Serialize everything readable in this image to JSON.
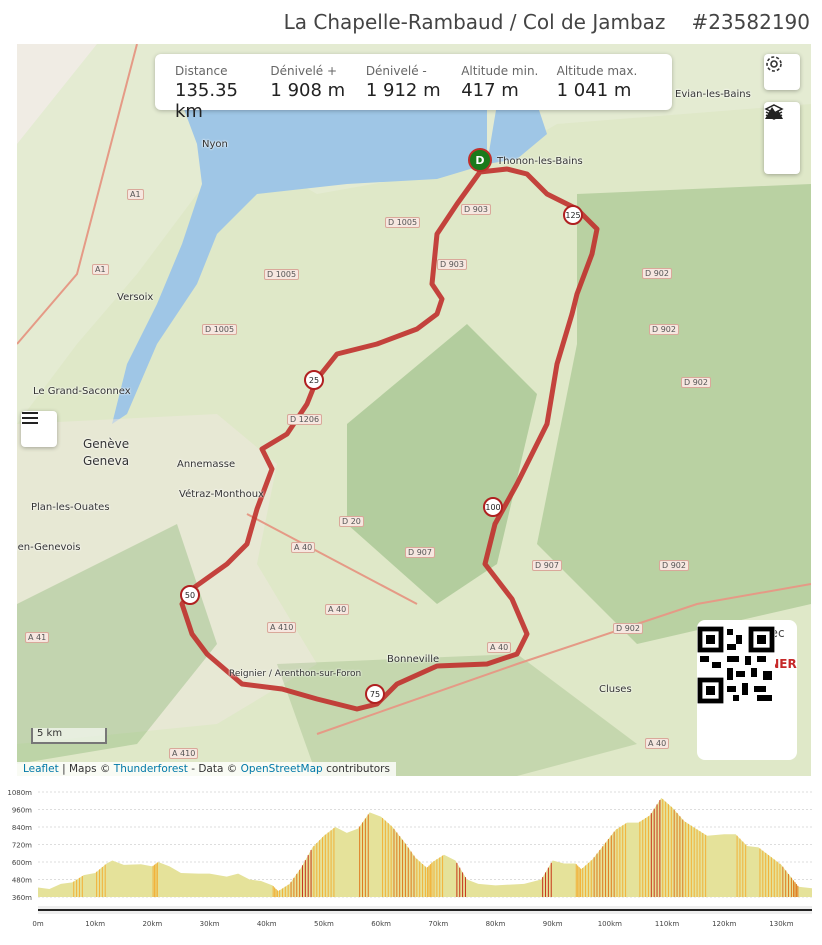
{
  "header": {
    "title": "La Chapelle-Rambaud / Col de Jambaz",
    "route_id": "#23582190"
  },
  "stats": [
    {
      "label": "Distance",
      "value": "135.35 km"
    },
    {
      "label": "Dénivelé +",
      "value": "1 908 m"
    },
    {
      "label": "Dénivelé -",
      "value": "1 912 m"
    },
    {
      "label": "Altitude min.",
      "value": "417 m"
    },
    {
      "label": "Altitude max.",
      "value": "1 041 m"
    }
  ],
  "controls": {
    "settings": "gear-icon",
    "layers": "layers-icon",
    "elevation": "mountain-icon",
    "menu": "hamburger-icon"
  },
  "map": {
    "places": [
      "Nyon",
      "Evian-les-Bains",
      "Thonon-les-Bains",
      "Versoix",
      "Le Grand-Saconnex",
      "Genève",
      "Geneva",
      "Annemasse",
      "Vétraz-Monthoux",
      "Plan-les-Ouates",
      "Saint-Julien-en-Genevois",
      "Bonneville",
      "Reignier / Arenthon-sur-Foron",
      "Cluses"
    ],
    "roads": [
      "A1",
      "A1",
      "D 1005",
      "D 1005",
      "D 1005",
      "D 903",
      "D 903",
      "D 902",
      "D 902",
      "D 902",
      "D 902",
      "D 902",
      "D 907",
      "D 907",
      "D 20",
      "A 40",
      "A 40",
      "A 40",
      "A 40",
      "A 410",
      "A 410",
      "A 41",
      "D 1206"
    ],
    "start_marker": "D",
    "km_markers": [
      "25",
      "50",
      "75",
      "100",
      "125"
    ],
    "scale": "5 km",
    "route_color": "#c0302c"
  },
  "badge": {
    "made_with": "Réalisé avec",
    "brand": "OPENRUNNER",
    "brand_color": "#c62828"
  },
  "attribution": {
    "leaflet": "Leaflet",
    "sep1": "| Maps ©",
    "thunderforest": "Thunderforest",
    "sep2": "- Data ©",
    "osm": "OpenStreetMap",
    "contributors": "contributors"
  },
  "chart_data": {
    "type": "area",
    "xlabel": "",
    "ylabel": "",
    "x_ticks": [
      "0 m",
      "10 km",
      "20 km",
      "30 km",
      "40 km",
      "50 km",
      "60 km",
      "70 km",
      "80 km",
      "90 km",
      "100 km",
      "110 km",
      "120 km",
      "130 km"
    ],
    "y_ticks": [
      "360 m",
      "480 m",
      "600 m",
      "720 m",
      "840 m",
      "960 m",
      "1080 m"
    ],
    "xlim": [
      0,
      135.35
    ],
    "ylim": [
      360,
      1080
    ],
    "grid": true,
    "fill_color": "#e5e29a",
    "steep_colors": [
      "#f2b23a",
      "#e07a1e",
      "#c8361a"
    ],
    "distance_km": [
      0,
      2,
      4,
      6,
      8,
      10,
      12,
      13,
      15,
      18,
      20,
      21,
      23,
      25,
      28,
      30,
      33,
      35,
      37,
      39,
      41,
      42,
      44,
      46,
      48,
      50,
      52,
      54,
      56,
      58,
      60,
      62,
      64,
      66,
      68,
      69,
      71,
      73,
      75,
      77,
      80,
      85,
      88,
      90,
      92,
      94,
      95,
      97,
      99,
      101,
      103,
      105,
      107,
      109,
      111,
      113,
      115,
      117,
      120,
      122,
      124,
      126,
      128,
      130,
      132,
      133,
      135.35
    ],
    "elevation_m": [
      425,
      415,
      450,
      460,
      510,
      525,
      590,
      610,
      580,
      585,
      570,
      600,
      570,
      525,
      520,
      520,
      500,
      520,
      480,
      470,
      440,
      400,
      450,
      560,
      700,
      780,
      840,
      800,
      830,
      940,
      910,
      840,
      740,
      630,
      560,
      600,
      650,
      610,
      480,
      450,
      440,
      450,
      480,
      610,
      590,
      590,
      550,
      620,
      720,
      820,
      870,
      870,
      920,
      1040,
      970,
      880,
      830,
      780,
      790,
      790,
      710,
      700,
      640,
      580,
      480,
      430,
      420
    ]
  }
}
